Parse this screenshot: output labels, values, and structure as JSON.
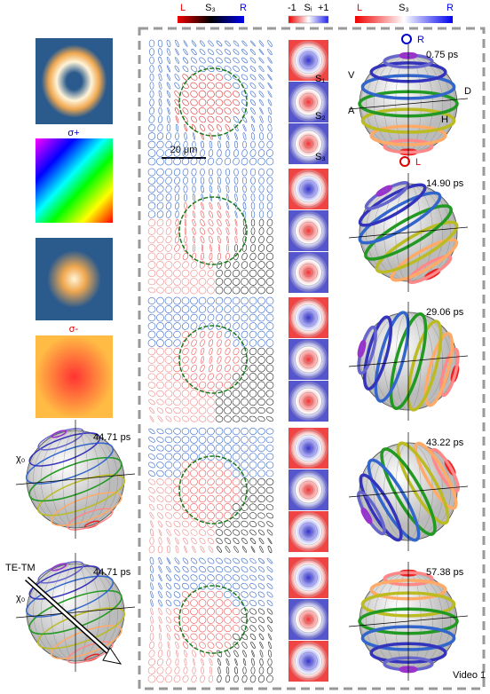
{
  "colorbars": [
    {
      "left": "L",
      "center": "S₃",
      "right": "R"
    },
    {
      "left": "-1",
      "center": "Sᵢ",
      "right": "+1"
    },
    {
      "left": "L",
      "center": "S₃",
      "right": "R"
    }
  ],
  "left_panel": {
    "sigma_plus": "σ+",
    "sigma_minus": "σ-",
    "spheres": [
      {
        "time": "44.71 ps",
        "angle": "χ₀"
      },
      {
        "time": "44.71 ps",
        "angle": "χ₀",
        "arrow": "TE-TM"
      }
    ]
  },
  "stokes_labels": [
    "S₁",
    "S₂",
    "S₃"
  ],
  "scale_bar": "20 μm",
  "sphere_labels": {
    "R": "R",
    "L": "L",
    "V": "V",
    "D": "D",
    "A": "A",
    "H": "H"
  },
  "frames": [
    {
      "time": "0.75 ps"
    },
    {
      "time": "14.90 ps"
    },
    {
      "time": "29.06 ps"
    },
    {
      "time": "43.22 ps"
    },
    {
      "time": "57.38 ps"
    }
  ],
  "footer": "Video 1"
}
